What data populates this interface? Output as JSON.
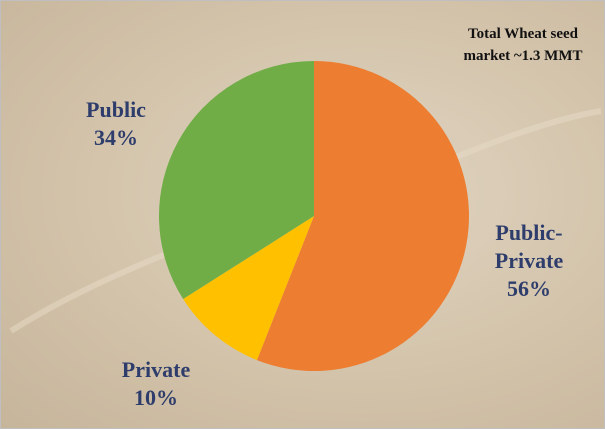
{
  "chart_data": {
    "type": "pie",
    "annotation": "Total Wheat seed market ~1.3 MMT",
    "categories": [
      "Public-Private",
      "Private",
      "Public"
    ],
    "values": [
      56,
      10,
      34
    ],
    "value_labels": [
      "56%",
      "10%",
      "34%"
    ],
    "colors": [
      "#ed7d31",
      "#ffc000",
      "#70ad47"
    ]
  }
}
